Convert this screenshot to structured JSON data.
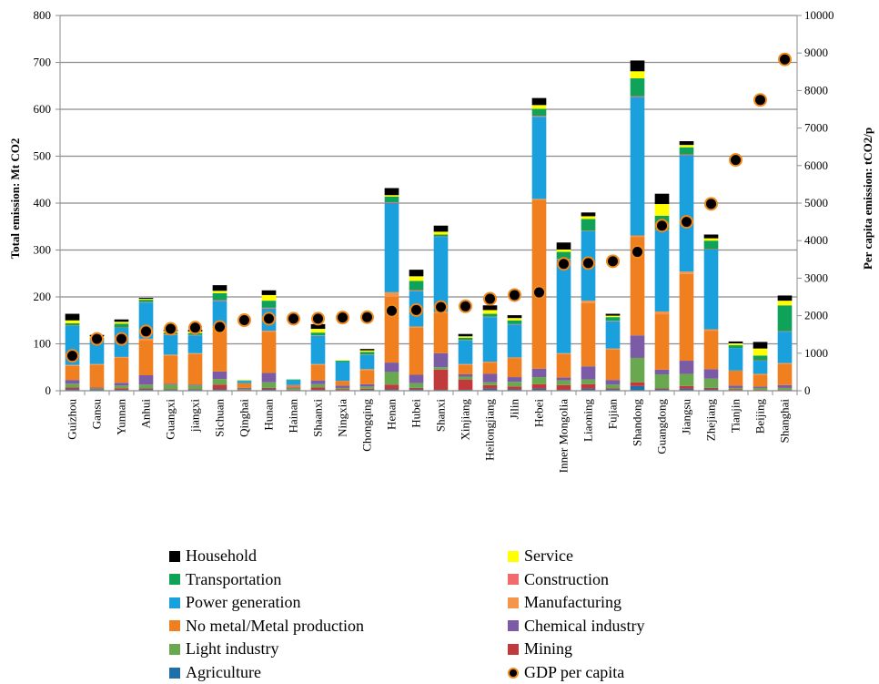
{
  "chart_data": {
    "type": "bar",
    "stacked": true,
    "title": "",
    "xlabel": "",
    "ylabel": "Total emission: Mt CO2",
    "y2label": "Per capita emission: tCO2/p",
    "ylim": [
      0,
      800
    ],
    "y2lim": [
      0,
      10000
    ],
    "yticks": [
      "0",
      "100",
      "200",
      "300",
      "400",
      "500",
      "600",
      "700",
      "800"
    ],
    "y2ticks": [
      "0",
      "1000",
      "2000",
      "3000",
      "4000",
      "5000",
      "6000",
      "7000",
      "8000",
      "9000",
      "10000"
    ],
    "grid": true,
    "legend_position": "bottom",
    "categories": [
      "Guizhou",
      "Gansu",
      "Yunnan",
      "Anhui",
      "Guangxi",
      "jiangxi",
      "Sichuan",
      "Qinghai",
      "Hunan",
      "Hainan",
      "Shaanxi",
      "Ningxia",
      "Chongqing",
      "Henan",
      "Hubei",
      "Shanxi",
      "Xinjiang",
      "Heilongjiang",
      "Jilin",
      "Hebei",
      "Inner Mongolia",
      "Liaoning",
      "Fujian",
      "Shandong",
      "Guangdong",
      "Jiangsu",
      "Zhejiang",
      "Tianjin",
      "Beijing",
      "Shanghai"
    ],
    "series": [
      {
        "name": "Agriculture",
        "color": "#1f6fa8",
        "values": [
          3,
          2,
          2,
          3,
          2,
          2,
          3,
          1,
          3,
          1,
          2,
          1,
          2,
          3,
          3,
          2,
          2,
          4,
          3,
          4,
          2,
          4,
          3,
          10,
          3,
          4,
          3,
          1,
          1,
          1
        ]
      },
      {
        "name": "Mining",
        "color": "#c0393b",
        "values": [
          4,
          1,
          3,
          2,
          1,
          1,
          10,
          1,
          3,
          1,
          5,
          2,
          2,
          10,
          3,
          43,
          22,
          8,
          6,
          10,
          10,
          10,
          2,
          8,
          2,
          6,
          3,
          2,
          1,
          1
        ]
      },
      {
        "name": "Light industry",
        "color": "#6aa84f",
        "values": [
          8,
          2,
          6,
          8,
          10,
          8,
          12,
          2,
          12,
          3,
          7,
          3,
          5,
          27,
          10,
          5,
          6,
          6,
          10,
          15,
          10,
          10,
          8,
          52,
          30,
          26,
          20,
          3,
          4,
          4
        ]
      },
      {
        "name": "Chemical industry",
        "color": "#7b5aa6",
        "values": [
          8,
          2,
          6,
          20,
          2,
          2,
          16,
          2,
          20,
          2,
          8,
          5,
          5,
          20,
          18,
          30,
          5,
          18,
          10,
          18,
          6,
          28,
          10,
          48,
          10,
          28,
          20,
          5,
          3,
          6
        ]
      },
      {
        "name": "No metal/Metal production",
        "color": "#f07f1f",
        "values": [
          30,
          48,
          53,
          75,
          60,
          65,
          90,
          10,
          88,
          5,
          33,
          10,
          30,
          140,
          100,
          85,
          20,
          24,
          40,
          360,
          50,
          135,
          65,
          210,
          118,
          185,
          82,
          32,
          24,
          45
        ]
      },
      {
        "name": "Manufacturing",
        "color": "#f4954a",
        "values": [
          2,
          2,
          2,
          3,
          2,
          2,
          3,
          0,
          2,
          0,
          2,
          0,
          2,
          10,
          3,
          3,
          2,
          2,
          2,
          2,
          2,
          5,
          2,
          3,
          6,
          5,
          3,
          0,
          3,
          2
        ]
      },
      {
        "name": "Power generation",
        "color": "#1aa0dc",
        "values": [
          83,
          53,
          62,
          77,
          42,
          38,
          57,
          5,
          47,
          10,
          60,
          40,
          30,
          190,
          75,
          160,
          50,
          95,
          70,
          175,
          200,
          148,
          58,
          295,
          173,
          248,
          170,
          48,
          28,
          67
        ]
      },
      {
        "name": "Construction",
        "color": "#f06b6b",
        "values": [
          1,
          1,
          1,
          1,
          1,
          1,
          2,
          0,
          2,
          0,
          1,
          0,
          1,
          2,
          2,
          1,
          1,
          1,
          1,
          2,
          1,
          1,
          1,
          2,
          1,
          2,
          1,
          0,
          1,
          1
        ]
      },
      {
        "name": "Transportation",
        "color": "#0fa35a",
        "values": [
          5,
          2,
          8,
          5,
          4,
          4,
          15,
          1,
          15,
          2,
          6,
          3,
          6,
          12,
          20,
          4,
          5,
          6,
          8,
          15,
          15,
          25,
          8,
          38,
          30,
          15,
          18,
          6,
          10,
          55
        ]
      },
      {
        "name": "Service",
        "color": "#ffff00",
        "values": [
          6,
          3,
          4,
          2,
          3,
          3,
          5,
          1,
          12,
          0,
          8,
          1,
          3,
          3,
          10,
          6,
          3,
          8,
          5,
          8,
          5,
          6,
          3,
          15,
          25,
          5,
          5,
          4,
          15,
          10
        ]
      },
      {
        "name": "Household",
        "color": "#000000",
        "values": [
          14,
          3,
          5,
          2,
          3,
          4,
          12,
          0,
          10,
          0,
          10,
          0,
          3,
          15,
          14,
          13,
          5,
          10,
          6,
          15,
          15,
          8,
          4,
          23,
          22,
          8,
          8,
          4,
          14,
          11
        ]
      }
    ],
    "gdp_series": {
      "name": "GDP per capita",
      "values": [
        930,
        1380,
        1380,
        1580,
        1650,
        1680,
        1700,
        1880,
        1920,
        1920,
        1920,
        1950,
        1960,
        2130,
        2150,
        2230,
        2250,
        2450,
        2550,
        2620,
        3380,
        3400,
        3450,
        3700,
        4400,
        4500,
        4980,
        6150,
        7750,
        8830
      ]
    }
  },
  "legend": {
    "left": [
      "Household",
      "Transportation",
      "Power generation",
      "No metal/Metal production",
      "Light industry",
      "Agriculture"
    ],
    "left_colors": [
      "#000000",
      "#0fa35a",
      "#1aa0dc",
      "#f07f1f",
      "#6aa84f",
      "#1f6fa8"
    ],
    "right": [
      "Service",
      "Construction",
      "Manufacturing",
      "Chemical industry",
      "Mining",
      "GDP per capita"
    ],
    "right_colors": [
      "#ffff00",
      "#f06b6b",
      "#f4954a",
      "#7b5aa6",
      "#c0393b",
      ""
    ]
  }
}
